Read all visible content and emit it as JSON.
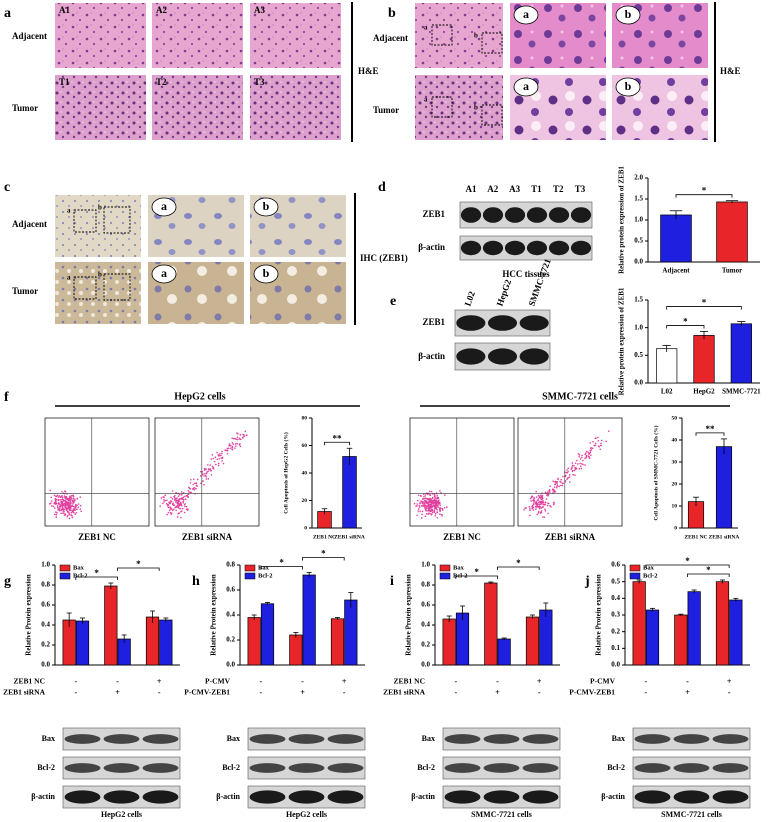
{
  "panels": {
    "a": {
      "letter": "a",
      "rows": [
        "Adjacent",
        "Tumor"
      ],
      "tags": [
        "A1",
        "A2",
        "A3",
        "T1",
        "T2",
        "T3"
      ],
      "stain": "H&E"
    },
    "b": {
      "letter": "b",
      "rows": [
        "Adjacent",
        "Tumor"
      ],
      "zoom_tags": [
        "a",
        "b"
      ],
      "stain": "H&E"
    },
    "c": {
      "letter": "c",
      "rows": [
        "Adjacent",
        "Tumor"
      ],
      "zoom_tags": [
        "a",
        "b"
      ],
      "stain": "IHC (ZEB1)"
    },
    "d": {
      "letter": "d",
      "lanes": [
        "A1",
        "A2",
        "A3",
        "T1",
        "T2",
        "T3"
      ],
      "bands": [
        "ZEB1",
        "β-actin"
      ],
      "caption": "HCC tissues"
    },
    "e": {
      "letter": "e",
      "lanes": [
        "L02",
        "HepG2",
        "SMMC-7721"
      ],
      "bands": [
        "ZEB1",
        "β-actin"
      ]
    },
    "f": {
      "letter": "f",
      "groups": [
        {
          "title": "HepG2 cells",
          "plots": [
            "ZEB1 NC",
            "ZEB1 siRNA"
          ]
        },
        {
          "title": "SMMC-7721 cells",
          "plots": [
            "ZEB1 NC",
            "ZEB1 siRNA"
          ]
        }
      ]
    },
    "g": {
      "letter": "g",
      "bands": [
        "Bax",
        "Bcl-2",
        "β-actin"
      ],
      "caption": "HepG2 cells",
      "conditions": [
        {
          "name": "ZEB1 NC",
          "signs": [
            "-",
            "-",
            "+"
          ]
        },
        {
          "name": "ZEB1 siRNA",
          "signs": [
            "-",
            "+",
            "-"
          ]
        }
      ]
    },
    "h": {
      "letter": "h",
      "bands": [
        "Bax",
        "Bcl-2",
        "β-actin"
      ],
      "caption": "HepG2 cells",
      "conditions": [
        {
          "name": "P-CMV",
          "signs": [
            "-",
            "-",
            "+"
          ]
        },
        {
          "name": "P-CMV-ZEB1",
          "signs": [
            "-",
            "+",
            "-"
          ]
        }
      ]
    },
    "i": {
      "letter": "i",
      "bands": [
        "Bax",
        "Bcl-2",
        "β-actin"
      ],
      "caption": "SMMC-7721 cells",
      "conditions": [
        {
          "name": "ZEB1 NC",
          "signs": [
            "-",
            "-",
            "+"
          ]
        },
        {
          "name": "ZEB1 siRNA",
          "signs": [
            "-",
            "+",
            "-"
          ]
        }
      ]
    },
    "j": {
      "letter": "j",
      "bands": [
        "Bax",
        "Bcl-2",
        "β-actin"
      ],
      "caption": "SMMC-7721 cells",
      "conditions": [
        {
          "name": "P-CMV",
          "signs": [
            "-",
            "-",
            "+"
          ]
        },
        {
          "name": "P-CMV-ZEB1",
          "signs": [
            "-",
            "+",
            "-"
          ]
        }
      ]
    }
  },
  "chart_data": [
    {
      "type": "bar",
      "ylabel": "Relative protein expression of ZEB1",
      "categories": [
        "Adjacent",
        "Tumor"
      ],
      "colors": [
        "#1f1fe0",
        "#e8262a"
      ],
      "values": [
        1.12,
        1.43
      ],
      "errors": [
        0.1,
        0.03
      ],
      "ylim": [
        0,
        2
      ],
      "yticks": [
        {
          "value": 0,
          "label": "0.0"
        },
        {
          "value": 0.5,
          "label": "0.5"
        },
        {
          "value": 1,
          "label": "1.0"
        },
        {
          "value": 1.5,
          "label": "1.5"
        },
        {
          "value": 2,
          "label": "2.0"
        }
      ],
      "significance": [
        "*"
      ]
    },
    {
      "type": "bar",
      "ylabel": "Relative protein expression of ZEB1",
      "categories": [
        "L02",
        "HepG2",
        "SMMC-7721"
      ],
      "colors": [
        "#ffffff",
        "#e8262a",
        "#1f1fe0"
      ],
      "values": [
        0.62,
        0.86,
        1.07
      ],
      "errors": [
        0.06,
        0.07,
        0.04
      ],
      "ylim": [
        0,
        1.5
      ],
      "yticks": [
        {
          "value": 0,
          "label": "0.0"
        },
        {
          "value": 0.5,
          "label": "0.5"
        },
        {
          "value": 1,
          "label": "1.0"
        },
        {
          "value": 1.5,
          "label": "1.5"
        }
      ],
      "significance": [
        "*",
        "*"
      ]
    },
    {
      "type": "bar",
      "ylabel": "Cell Apoptosis of HepG2 Cells (%)",
      "categories": [
        "ZEB1 NC",
        "ZEB1 siRNA"
      ],
      "colors": [
        "#e8262a",
        "#1f1fe0"
      ],
      "values": [
        12,
        52
      ],
      "errors": [
        2,
        6
      ],
      "ylim": [
        0,
        80
      ],
      "yticks": [
        0,
        20,
        40,
        60,
        80
      ],
      "significance": [
        "**"
      ]
    },
    {
      "type": "bar",
      "ylabel": "Cell Apoptosis of SMMC-7721 Cells (%)",
      "categories": [
        "ZEB1 NC",
        "ZEB1 siRNA"
      ],
      "colors": [
        "#e8262a",
        "#1f1fe0"
      ],
      "values": [
        12,
        37
      ],
      "errors": [
        2,
        3.5
      ],
      "ylim": [
        0,
        50
      ],
      "yticks": [
        0,
        10,
        20,
        30,
        40,
        50
      ],
      "significance": [
        "**"
      ]
    },
    {
      "type": "grouped-bar",
      "ylabel": "Relative Protein expression",
      "series": [
        {
          "name": "Bax",
          "color": "#e8262a",
          "values": [
            0.45,
            0.79,
            0.48
          ],
          "errors": [
            0.07,
            0.03,
            0.06
          ]
        },
        {
          "name": "Bcl-2",
          "color": "#1f1fe0",
          "values": [
            0.44,
            0.26,
            0.45
          ],
          "errors": [
            0.03,
            0.04,
            0.02
          ]
        }
      ],
      "ylim": [
        0,
        1
      ],
      "yticks": [
        {
          "value": 0,
          "label": "0.0"
        },
        {
          "value": 0.2,
          "label": "0.2"
        },
        {
          "value": 0.4,
          "label": "0.4"
        },
        {
          "value": 0.6,
          "label": "0.6"
        },
        {
          "value": 0.8,
          "label": "0.8"
        },
        {
          "value": 1,
          "label": "1.0"
        }
      ],
      "significance": [
        "*",
        "*"
      ]
    },
    {
      "type": "grouped-bar",
      "ylabel": "Relative Protein expression",
      "series": [
        {
          "name": "Bax",
          "color": "#e8262a",
          "values": [
            0.38,
            0.24,
            0.37
          ],
          "errors": [
            0.02,
            0.02,
            0.01
          ]
        },
        {
          "name": "Bcl-2",
          "color": "#1f1fe0",
          "values": [
            0.49,
            0.72,
            0.52
          ],
          "errors": [
            0.01,
            0.02,
            0.06
          ]
        }
      ],
      "ylim": [
        0,
        0.8
      ],
      "yticks": [
        {
          "value": 0,
          "label": "0.0"
        },
        {
          "value": 0.2,
          "label": "0.2"
        },
        {
          "value": 0.4,
          "label": "0.4"
        },
        {
          "value": 0.6,
          "label": "0.6"
        },
        {
          "value": 0.8,
          "label": "0.8"
        }
      ],
      "significance": [
        "*",
        "*"
      ]
    },
    {
      "type": "grouped-bar",
      "ylabel": "Relative Protein expression",
      "series": [
        {
          "name": "Bax",
          "color": "#e8262a",
          "values": [
            0.46,
            0.82,
            0.48
          ],
          "errors": [
            0.03,
            0.01,
            0.02
          ]
        },
        {
          "name": "Bcl-2",
          "color": "#1f1fe0",
          "values": [
            0.52,
            0.26,
            0.55
          ],
          "errors": [
            0.07,
            0.01,
            0.07
          ]
        }
      ],
      "ylim": [
        0,
        1
      ],
      "yticks": [
        {
          "value": 0,
          "label": "0.0"
        },
        {
          "value": 0.2,
          "label": "0.2"
        },
        {
          "value": 0.4,
          "label": "0.4"
        },
        {
          "value": 0.6,
          "label": "0.6"
        },
        {
          "value": 0.8,
          "label": "0.8"
        },
        {
          "value": 1,
          "label": "1.0"
        }
      ],
      "significance": [
        "*",
        "*"
      ]
    },
    {
      "type": "grouped-bar",
      "ylabel": "Relative Protein expression",
      "series": [
        {
          "name": "Bax",
          "color": "#e8262a",
          "values": [
            0.5,
            0.3,
            0.5
          ],
          "errors": [
            0.01,
            0.005,
            0.01
          ]
        },
        {
          "name": "Bcl-2",
          "color": "#1f1fe0",
          "values": [
            0.33,
            0.44,
            0.39
          ],
          "errors": [
            0.01,
            0.01,
            0.01
          ]
        }
      ],
      "ylim": [
        0,
        0.6
      ],
      "yticks": [
        {
          "value": 0,
          "label": "0.0"
        },
        {
          "value": 0.1,
          "label": "0.1"
        },
        {
          "value": 0.2,
          "label": "0.2"
        },
        {
          "value": 0.3,
          "label": "0.3"
        },
        {
          "value": 0.4,
          "label": "0.4"
        },
        {
          "value": 0.5,
          "label": "0.5"
        },
        {
          "value": 0.6,
          "label": "0.6"
        }
      ],
      "significance": [
        "*",
        "*"
      ]
    }
  ]
}
